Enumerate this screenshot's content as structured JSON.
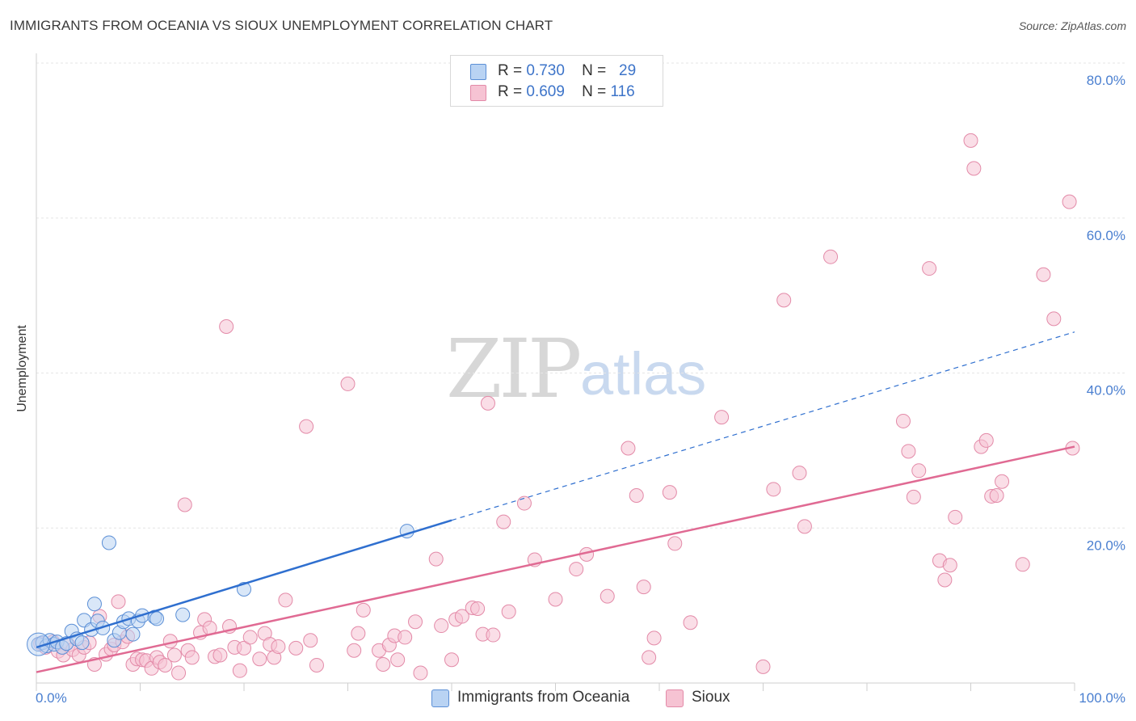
{
  "title": "IMMIGRANTS FROM OCEANIA VS SIOUX UNEMPLOYMENT CORRELATION CHART",
  "source": "Source: ZipAtlas.com",
  "watermark": {
    "zip": "ZIP",
    "atlas": "atlas"
  },
  "colors": {
    "blue_fill": "#b9d3f3",
    "blue_stroke": "#5b8fd6",
    "blue_line": "#2f6fcf",
    "pink_fill": "#f6c3d3",
    "pink_stroke": "#e38aa8",
    "pink_line": "#e06a93",
    "grid": "#e6e6e6",
    "tick_text": "#4a7fd0"
  },
  "legend_top": {
    "rows": [
      {
        "r_label": "R =",
        "r_value": "0.730",
        "n_label": "N =",
        "n_value": "29"
      },
      {
        "r_label": "R =",
        "r_value": "0.609",
        "n_label": "N =",
        "n_value": "116"
      }
    ]
  },
  "legend_bottom": {
    "series1": "Immigrants from Oceania",
    "series2": "Sioux"
  },
  "chart_data": {
    "type": "scatter",
    "title": "IMMIGRANTS FROM OCEANIA VS SIOUX UNEMPLOYMENT CORRELATION CHART",
    "xlabel": "",
    "ylabel": "Unemployment",
    "xlim": [
      0,
      100
    ],
    "ylim": [
      0,
      80
    ],
    "x_tick_labels": [
      "0.0%",
      "100.0%"
    ],
    "y_ticks": [
      20,
      40,
      60,
      80
    ],
    "y_tick_labels": [
      "20.0%",
      "40.0%",
      "60.0%",
      "80.0%"
    ],
    "grid": true,
    "legend": "top-center",
    "series": [
      {
        "name": "Immigrants from Oceania",
        "r": 0.73,
        "n": 29,
        "trend": {
          "x0": 0.0,
          "y0": 4.6,
          "x1": 40.0,
          "y1": 21.0,
          "dashed_to_x": 100.0,
          "dashed_to_y": 45.3
        },
        "points": [
          [
            0.2,
            5.0
          ],
          [
            0.6,
            5.2
          ],
          [
            1.0,
            4.8
          ],
          [
            1.3,
            5.5
          ],
          [
            1.7,
            5.0
          ],
          [
            2.0,
            5.3
          ],
          [
            2.5,
            4.6
          ],
          [
            2.9,
            5.1
          ],
          [
            3.4,
            6.7
          ],
          [
            3.9,
            5.7
          ],
          [
            4.4,
            5.2
          ],
          [
            4.6,
            8.1
          ],
          [
            5.3,
            6.9
          ],
          [
            5.6,
            10.2
          ],
          [
            5.9,
            8.0
          ],
          [
            6.4,
            7.1
          ],
          [
            7.0,
            18.1
          ],
          [
            7.5,
            5.5
          ],
          [
            8.0,
            6.5
          ],
          [
            8.4,
            7.9
          ],
          [
            8.9,
            8.3
          ],
          [
            9.3,
            6.3
          ],
          [
            9.8,
            8.0
          ],
          [
            10.2,
            8.7
          ],
          [
            11.4,
            8.5
          ],
          [
            11.6,
            8.3
          ],
          [
            14.1,
            8.8
          ],
          [
            20.0,
            12.1
          ],
          [
            35.7,
            19.6
          ]
        ]
      },
      {
        "name": "Sioux",
        "r": 0.609,
        "n": 116,
        "trend": {
          "x0": 0.0,
          "y0": 1.4,
          "x1": 100.0,
          "y1": 30.5
        },
        "points": [
          [
            0.4,
            5.1
          ],
          [
            0.9,
            4.6
          ],
          [
            1.6,
            5.3
          ],
          [
            2.1,
            4.1
          ],
          [
            2.6,
            3.6
          ],
          [
            3.1,
            4.9
          ],
          [
            3.5,
            4.3
          ],
          [
            4.1,
            3.6
          ],
          [
            4.6,
            4.6
          ],
          [
            5.1,
            5.2
          ],
          [
            5.6,
            2.4
          ],
          [
            6.1,
            8.6
          ],
          [
            6.7,
            3.7
          ],
          [
            7.2,
            4.4
          ],
          [
            7.5,
            4.9
          ],
          [
            7.9,
            10.5
          ],
          [
            8.3,
            5.3
          ],
          [
            8.8,
            6.0
          ],
          [
            9.3,
            2.4
          ],
          [
            9.7,
            3.1
          ],
          [
            10.2,
            3.0
          ],
          [
            10.6,
            2.9
          ],
          [
            11.1,
            1.9
          ],
          [
            11.6,
            3.3
          ],
          [
            11.9,
            2.7
          ],
          [
            12.4,
            2.3
          ],
          [
            12.9,
            5.4
          ],
          [
            13.3,
            3.6
          ],
          [
            13.7,
            1.3
          ],
          [
            14.3,
            23.0
          ],
          [
            14.6,
            4.2
          ],
          [
            15.0,
            3.3
          ],
          [
            15.8,
            6.5
          ],
          [
            16.2,
            8.2
          ],
          [
            16.7,
            7.1
          ],
          [
            17.2,
            3.4
          ],
          [
            17.7,
            3.6
          ],
          [
            18.3,
            46.0
          ],
          [
            18.6,
            7.3
          ],
          [
            19.1,
            4.6
          ],
          [
            19.6,
            1.6
          ],
          [
            20.0,
            4.5
          ],
          [
            20.6,
            5.9
          ],
          [
            21.5,
            3.1
          ],
          [
            22.0,
            6.4
          ],
          [
            22.5,
            5.0
          ],
          [
            22.9,
            3.3
          ],
          [
            23.3,
            4.7
          ],
          [
            24.0,
            10.7
          ],
          [
            25.0,
            4.5
          ],
          [
            26.0,
            33.1
          ],
          [
            26.4,
            5.5
          ],
          [
            27.0,
            2.3
          ],
          [
            30.0,
            38.6
          ],
          [
            30.6,
            4.2
          ],
          [
            31.0,
            6.4
          ],
          [
            31.5,
            9.4
          ],
          [
            33.0,
            4.2
          ],
          [
            33.4,
            2.4
          ],
          [
            34.0,
            4.9
          ],
          [
            34.5,
            6.1
          ],
          [
            34.8,
            3.0
          ],
          [
            35.5,
            5.9
          ],
          [
            36.5,
            7.9
          ],
          [
            37.0,
            1.3
          ],
          [
            38.5,
            16.0
          ],
          [
            39.0,
            7.4
          ],
          [
            40.0,
            3.0
          ],
          [
            40.4,
            8.2
          ],
          [
            41.0,
            8.6
          ],
          [
            42.0,
            9.7
          ],
          [
            42.5,
            9.6
          ],
          [
            43.0,
            6.3
          ],
          [
            43.5,
            36.1
          ],
          [
            44.0,
            6.2
          ],
          [
            45.0,
            20.8
          ],
          [
            45.5,
            9.2
          ],
          [
            47.0,
            23.2
          ],
          [
            48.0,
            15.9
          ],
          [
            50.0,
            10.8
          ],
          [
            52.0,
            14.7
          ],
          [
            53.0,
            16.6
          ],
          [
            55.0,
            11.2
          ],
          [
            57.0,
            30.3
          ],
          [
            57.8,
            24.2
          ],
          [
            58.5,
            12.4
          ],
          [
            59.0,
            3.3
          ],
          [
            59.5,
            5.8
          ],
          [
            61.0,
            24.6
          ],
          [
            61.5,
            18.0
          ],
          [
            63.0,
            7.8
          ],
          [
            66.0,
            34.3
          ],
          [
            70.0,
            2.1
          ],
          [
            71.0,
            25.0
          ],
          [
            72.0,
            49.4
          ],
          [
            73.5,
            27.1
          ],
          [
            74.0,
            20.2
          ],
          [
            76.5,
            55.0
          ],
          [
            83.5,
            33.8
          ],
          [
            84.0,
            29.9
          ],
          [
            84.5,
            24.0
          ],
          [
            85.0,
            27.4
          ],
          [
            86.0,
            53.5
          ],
          [
            87.0,
            15.8
          ],
          [
            87.5,
            13.3
          ],
          [
            88.0,
            15.2
          ],
          [
            88.5,
            21.4
          ],
          [
            90.0,
            70.0
          ],
          [
            90.3,
            66.4
          ],
          [
            91.0,
            30.5
          ],
          [
            91.5,
            31.3
          ],
          [
            92.0,
            24.1
          ],
          [
            92.5,
            24.2
          ],
          [
            93.0,
            26.0
          ],
          [
            95.0,
            15.3
          ],
          [
            97.0,
            52.7
          ],
          [
            98.0,
            47.0
          ],
          [
            99.5,
            62.1
          ],
          [
            99.8,
            30.3
          ]
        ]
      }
    ]
  }
}
